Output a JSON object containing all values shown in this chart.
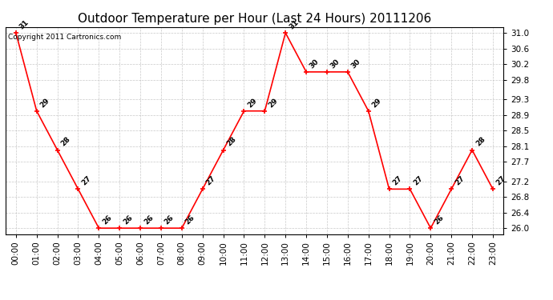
{
  "title": "Outdoor Temperature per Hour (Last 24 Hours) 20111206",
  "copyright": "Copyright 2011 Cartronics.com",
  "hours": [
    "00:00",
    "01:00",
    "02:00",
    "03:00",
    "04:00",
    "05:00",
    "06:00",
    "07:00",
    "08:00",
    "09:00",
    "10:00",
    "11:00",
    "12:00",
    "13:00",
    "14:00",
    "15:00",
    "16:00",
    "17:00",
    "18:00",
    "19:00",
    "20:00",
    "21:00",
    "22:00",
    "23:00"
  ],
  "values": [
    31,
    29,
    28,
    27,
    26,
    26,
    26,
    26,
    26,
    27,
    28,
    29,
    29,
    31,
    30,
    30,
    30,
    29,
    27,
    27,
    26,
    27,
    28,
    27
  ],
  "line_color": "#ff0000",
  "marker_color": "#ff0000",
  "background_color": "#ffffff",
  "grid_color": "#bbbbbb",
  "title_fontsize": 11,
  "label_fontsize": 7.5,
  "annotation_fontsize": 6.5,
  "yticks": [
    26.0,
    26.4,
    26.8,
    27.2,
    27.7,
    28.1,
    28.5,
    28.9,
    29.3,
    29.8,
    30.2,
    30.6,
    31.0
  ],
  "ylim": [
    25.85,
    31.15
  ],
  "copyright_fontsize": 6.5
}
